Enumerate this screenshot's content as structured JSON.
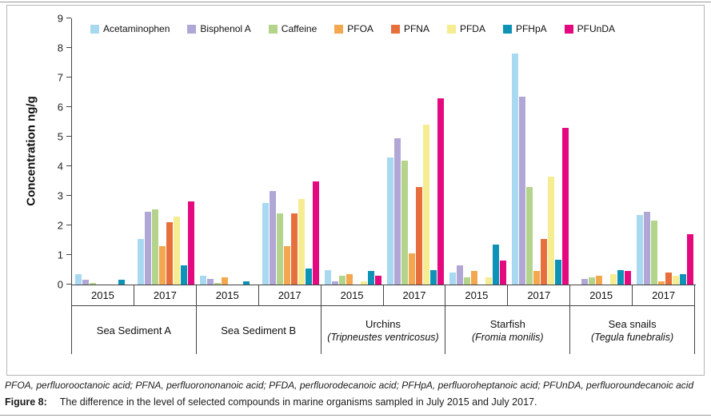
{
  "figure": {
    "footnote": "PFOA, perfluorooctanoic acid; PFNA, perfluorononanoic acid; PFDA, perfluorodecanoic acid; PFHpA, perfluoroheptanoic acid; PFUnDA, perfluoroundecanoic acid",
    "caption_label": "Figure 8:",
    "caption_text": "The difference in the level of selected compounds in marine organisms sampled in July 2015 and July 2017."
  },
  "chart_data": {
    "type": "bar",
    "title": "",
    "ylabel": "Concentration ng/g",
    "xlabel": "",
    "ylim": [
      0,
      9
    ],
    "yticks": [
      0,
      1,
      2,
      3,
      4,
      5,
      6,
      7,
      8,
      9
    ],
    "grid": false,
    "legend_position": "top",
    "years": [
      "2015",
      "2017"
    ],
    "groups": [
      {
        "label": "Sea Sediment A",
        "sublabel": ""
      },
      {
        "label": "Sea Sediment B",
        "sublabel": ""
      },
      {
        "label": "Urchins",
        "sublabel": "(Tripneustes ventricosus)"
      },
      {
        "label": "Starfish",
        "sublabel": "(Fromia monilis)"
      },
      {
        "label": "Sea snails",
        "sublabel": "(Tegula funebralis)"
      }
    ],
    "series": [
      {
        "name": "Acetaminophen",
        "color": "#a9d9f1",
        "values": [
          [
            0.35,
            1.55
          ],
          [
            0.3,
            2.75
          ],
          [
            0.5,
            4.3
          ],
          [
            0.4,
            7.8
          ],
          [
            0,
            2.35
          ]
        ]
      },
      {
        "name": "Bisphenol A",
        "color": "#b1a7d6",
        "values": [
          [
            0.15,
            2.45
          ],
          [
            0.2,
            3.15
          ],
          [
            0.1,
            4.95
          ],
          [
            0.65,
            6.35
          ],
          [
            0.2,
            2.45
          ]
        ]
      },
      {
        "name": "Caffeine",
        "color": "#b4d48b",
        "values": [
          [
            0.05,
            2.55
          ],
          [
            0.05,
            2.4
          ],
          [
            0.3,
            4.2
          ],
          [
            0.25,
            3.3
          ],
          [
            0.25,
            2.15
          ]
        ]
      },
      {
        "name": "PFOA",
        "color": "#f3a74e",
        "values": [
          [
            0,
            1.3
          ],
          [
            0.25,
            1.3
          ],
          [
            0.35,
            1.05
          ],
          [
            0.45,
            0.45
          ],
          [
            0.3,
            0.1
          ]
        ]
      },
      {
        "name": "PFNA",
        "color": "#e76f3c",
        "values": [
          [
            0,
            2.1
          ],
          [
            0,
            2.4
          ],
          [
            0,
            3.3
          ],
          [
            0,
            1.55
          ],
          [
            0,
            0.4
          ]
        ]
      },
      {
        "name": "PFDA",
        "color": "#f6ec91",
        "values": [
          [
            0,
            2.3
          ],
          [
            0,
            2.9
          ],
          [
            0.1,
            5.4
          ],
          [
            0.25,
            3.65
          ],
          [
            0.35,
            0.3
          ]
        ]
      },
      {
        "name": "PFHpA",
        "color": "#0e93b7",
        "values": [
          [
            0.15,
            0.65
          ],
          [
            0.1,
            0.55
          ],
          [
            0.45,
            0.5
          ],
          [
            1.35,
            0.85
          ],
          [
            0.5,
            0.35
          ]
        ]
      },
      {
        "name": "PFUnDA",
        "color": "#e50980",
        "values": [
          [
            0,
            2.8
          ],
          [
            0,
            3.5
          ],
          [
            0.3,
            6.3
          ],
          [
            0.8,
            5.3
          ],
          [
            0.45,
            1.7
          ]
        ]
      }
    ]
  }
}
